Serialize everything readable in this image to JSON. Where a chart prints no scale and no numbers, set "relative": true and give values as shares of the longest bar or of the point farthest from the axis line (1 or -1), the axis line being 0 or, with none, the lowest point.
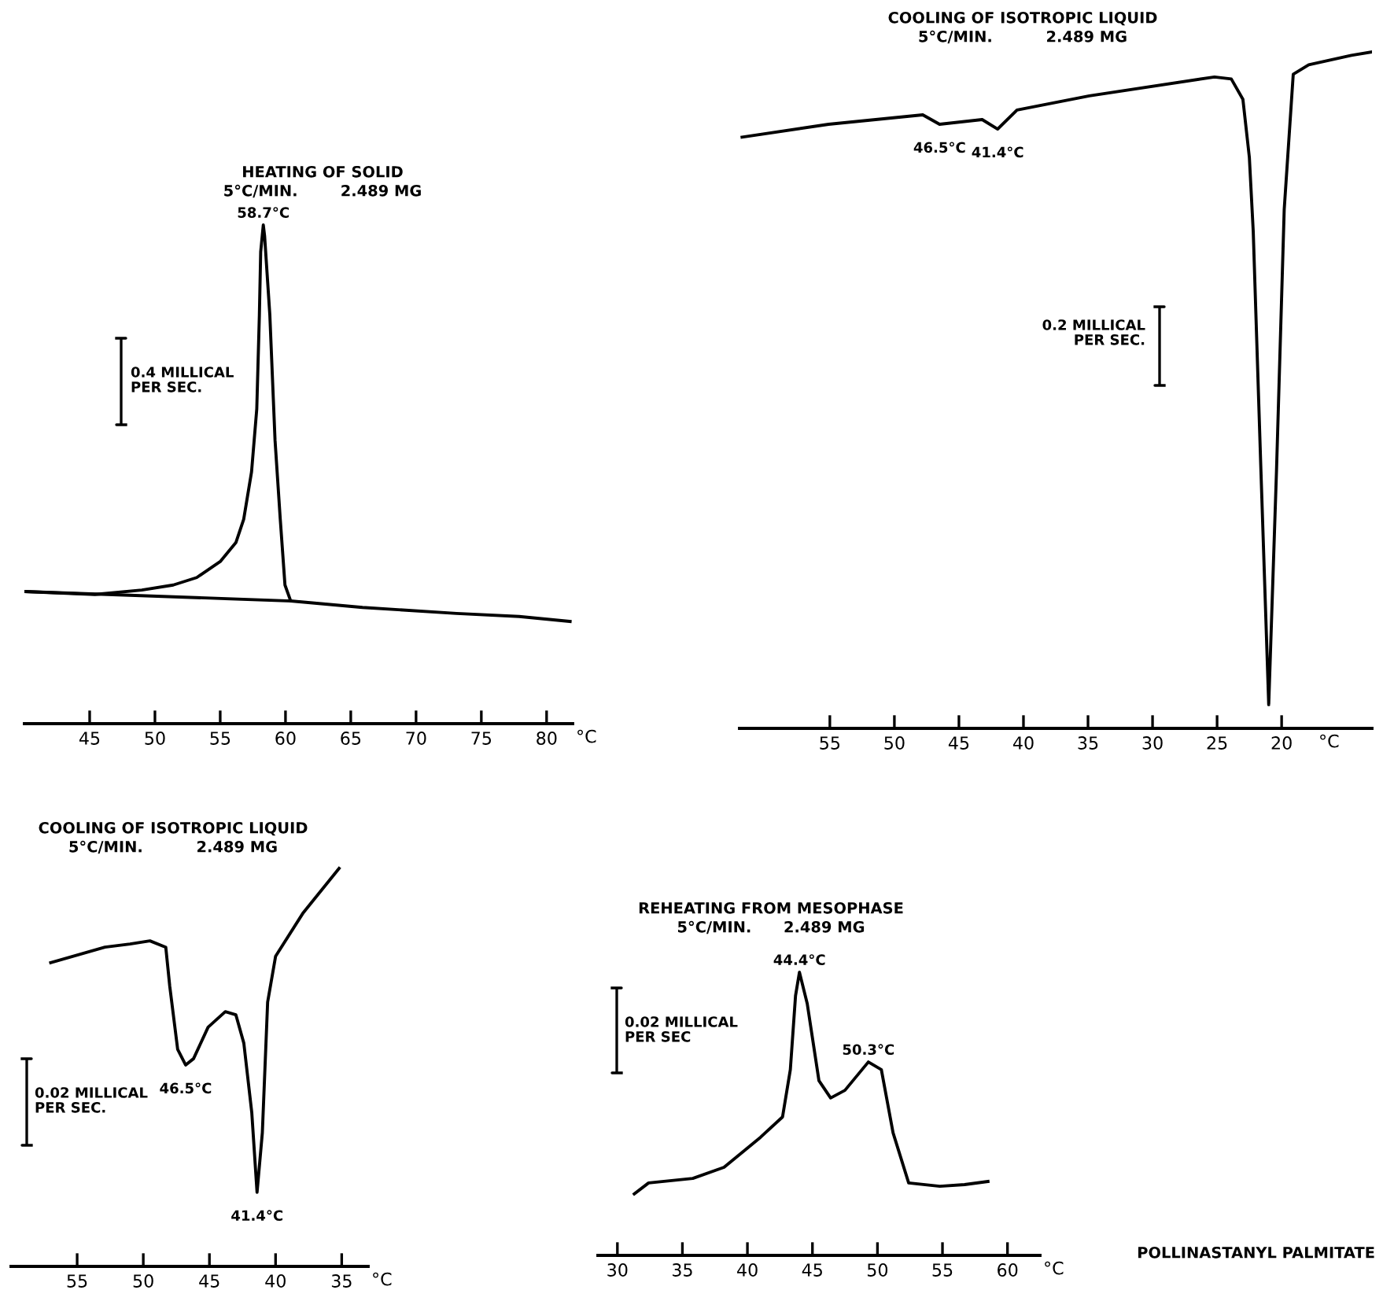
{
  "chart_data": [
    {
      "type": "line",
      "title": "HEATING OF SOLID",
      "subtitle": "5°C/MIN.        2.489 MG",
      "xlabel": "°C",
      "relative": true,
      "tick_labels": "x",
      "xlim": [
        40,
        82
      ],
      "xticks": [
        45,
        50,
        55,
        60,
        65,
        70,
        75,
        80
      ],
      "annotations": [
        "0.4 MILLICAL\nPER SEC.",
        {
          "text": "58.7°C",
          "x": 58.3,
          "y": 1
        }
      ],
      "series": [
        {
          "color": "#000000",
          "x": [
            40.0,
            45.4,
            49.0,
            51.4,
            53.2,
            55.0,
            56.2,
            56.8,
            57.4,
            57.8,
            58.0,
            58.1,
            58.3,
            58.4,
            58.8,
            59.2,
            59.6,
            59.96,
            60.4,
            65.9,
            73.1,
            77.9,
            81.8
          ],
          "values": [
            0.265,
            0.259,
            0.268,
            0.278,
            0.293,
            0.325,
            0.363,
            0.41,
            0.505,
            0.631,
            0.82,
            0.946,
            1,
            0.978,
            0.82,
            0.568,
            0.41,
            0.278,
            0.246,
            0.233,
            0.221,
            0.215,
            0.205
          ]
        },
        {
          "color": "#000000",
          "x": [
            40.0,
            60.4
          ],
          "values": [
            0.265,
            0.246
          ]
        }
      ]
    },
    {
      "type": "line",
      "title": "COOLING OF ISOTROPIC LIQUID",
      "subtitle": "5°C/MIN.          2.489 MG",
      "xlabel": "°C",
      "relative": true,
      "tick_labels": "x",
      "xlim": [
        62,
        13
      ],
      "xticks": [
        55,
        50,
        45,
        40,
        35,
        30,
        25,
        20
      ],
      "annotations": [
        "0.2 MILLICAL\nPER SEC.",
        {
          "text": "46.5°C",
          "x": 46.5,
          "y": 0.893
        },
        {
          "text": "41.4°C",
          "x": 42.0,
          "y": 0.886
        }
      ],
      "series": [
        {
          "color": "#000000",
          "x": [
            61.8,
            55.1,
            47.8,
            46.5,
            43.2,
            42.0,
            40.5,
            34.9,
            25.2,
            23.9,
            23.0,
            22.5,
            22.2,
            21.6,
            21.0,
            20.4,
            19.8,
            19.1,
            17.9,
            14.6,
            13.0
          ],
          "values": [
            0.874,
            0.893,
            0.907,
            0.893,
            0.9,
            0.886,
            0.914,
            0.935,
            0.963,
            0.96,
            0.93,
            0.844,
            0.735,
            0.379,
            0.035,
            0.379,
            0.767,
            0.967,
            0.981,
            0.995,
            1
          ]
        }
      ]
    },
    {
      "type": "line",
      "title": "COOLING OF ISOTROPIC LIQUID",
      "subtitle": "5°C/MIN.          2.489 MG",
      "xlabel": "°C",
      "relative": true,
      "tick_labels": "x",
      "xlim": [
        60,
        33
      ],
      "xticks": [
        55,
        50,
        45,
        40,
        35
      ],
      "annotations": [
        "0.02 MILLICAL\nPER SEC.",
        {
          "text": "46.5°C",
          "x": 46.8,
          "y": 0.506
        },
        {
          "text": "41.4°C",
          "x": 41.4,
          "y": 0.186
        }
      ],
      "series": [
        {
          "color": "#000000",
          "x": [
            57.0,
            52.9,
            51.0,
            49.5,
            48.3,
            48.0,
            47.4,
            46.8,
            46.2,
            45.1,
            43.8,
            43.0,
            42.4,
            41.8,
            41.4,
            41.0,
            40.6,
            40.0,
            37.9,
            35.2
          ],
          "values": [
            0.763,
            0.802,
            0.81,
            0.818,
            0.802,
            0.704,
            0.545,
            0.506,
            0.522,
            0.601,
            0.64,
            0.632,
            0.561,
            0.387,
            0.186,
            0.336,
            0.664,
            0.779,
            0.889,
            1
          ]
        }
      ]
    },
    {
      "type": "line",
      "title": "REHEATING FROM MESOPHASE",
      "subtitle": "5°C/MIN.      2.489 MG",
      "xlabel": "°C",
      "relative": true,
      "tick_labels": "x",
      "xlim": [
        28.5,
        62.5
      ],
      "xticks": [
        30,
        35,
        40,
        45,
        50,
        55,
        60
      ],
      "annotations": [
        "0.02 MILLICAL\nPER SEC",
        "POLLINASTANYL PALMITATE",
        {
          "text": "44.4°C",
          "x": 44.0,
          "y": 1
        },
        {
          "text": "50.3°C",
          "x": 49.3,
          "y": 0.683
        }
      ],
      "series": [
        {
          "color": "#000000",
          "x": [
            31.3,
            32.4,
            35.8,
            38.2,
            41.0,
            42.7,
            43.3,
            43.7,
            44.0,
            44.6,
            45.5,
            46.4,
            47.5,
            49.3,
            50.3,
            51.2,
            52.4,
            54.8,
            56.7,
            58.5
          ],
          "values": [
            0.217,
            0.256,
            0.272,
            0.311,
            0.417,
            0.489,
            0.656,
            0.917,
            1,
            0.889,
            0.617,
            0.556,
            0.583,
            0.683,
            0.656,
            0.433,
            0.256,
            0.244,
            0.25,
            0.261
          ]
        }
      ]
    }
  ]
}
